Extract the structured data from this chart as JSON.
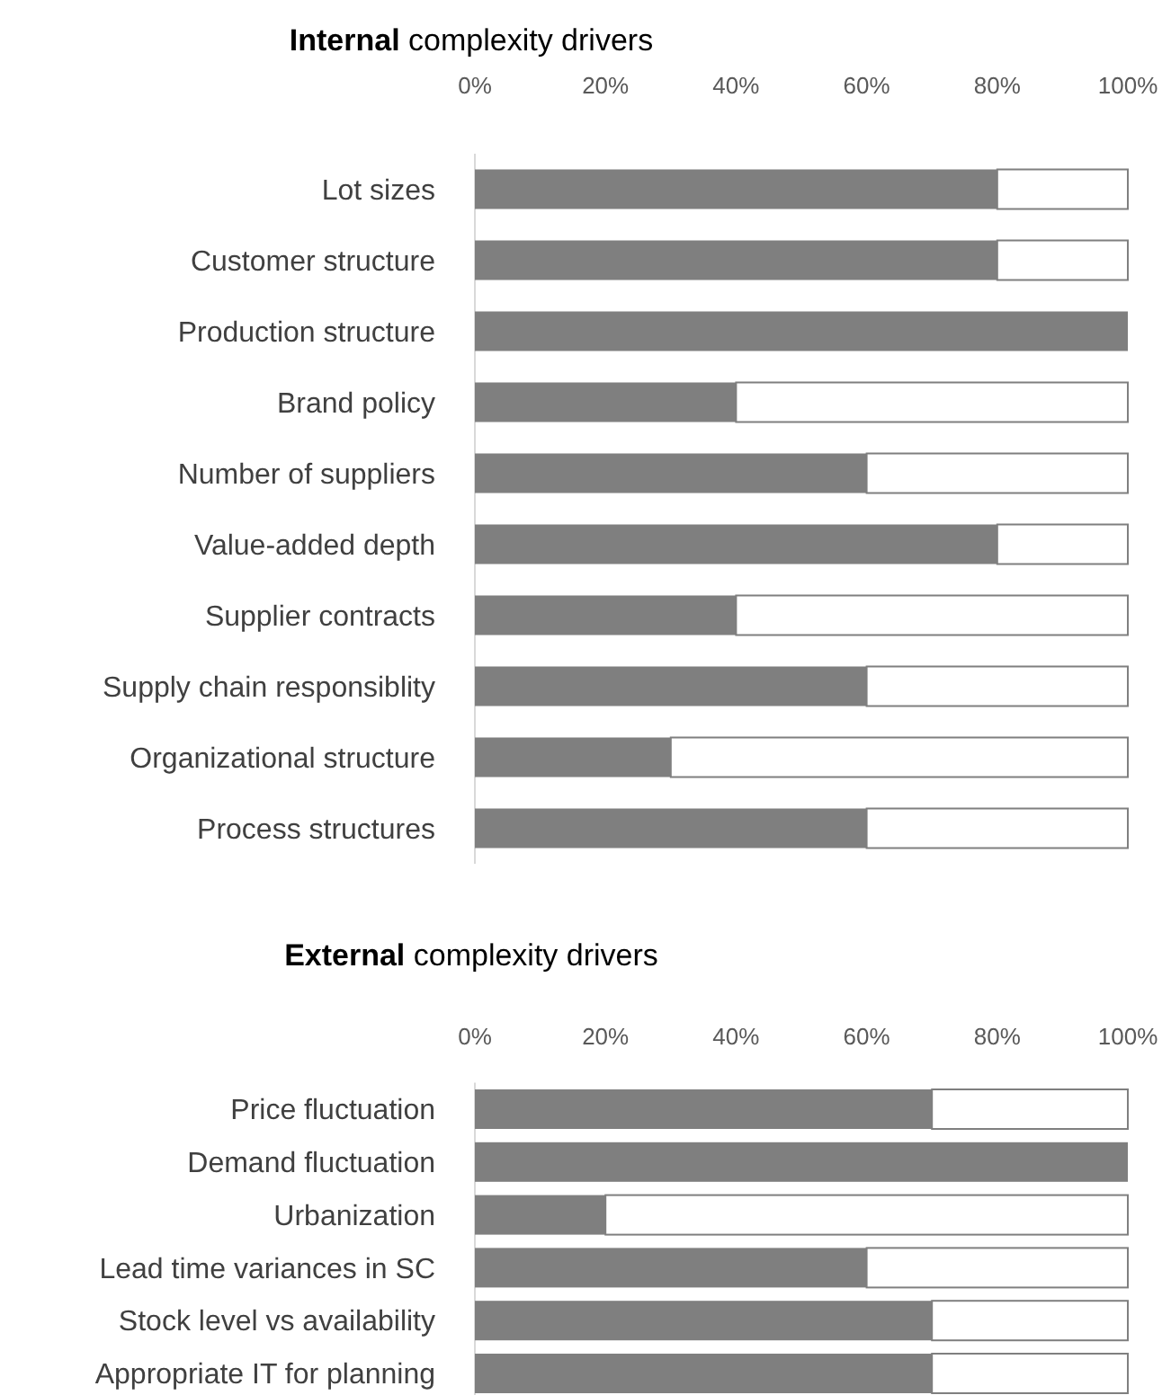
{
  "chart_data": [
    {
      "type": "bar",
      "orientation": "horizontal",
      "stacked": true,
      "title": "Internal complexity drivers",
      "categories": [
        "Lot sizes",
        "Customer structure",
        "Production structure",
        "Brand policy",
        "Number of suppliers",
        "Value-added depth",
        "Supplier contracts",
        "Supply chain responsiblity",
        "Organizational structure",
        "Process structures"
      ],
      "series": [
        {
          "color": "#7f7f7f",
          "values": [
            80,
            80,
            100,
            40,
            60,
            80,
            40,
            60,
            30,
            60
          ]
        },
        {
          "color": "#ffffff",
          "values": [
            20,
            20,
            0,
            60,
            40,
            20,
            60,
            40,
            70,
            40
          ]
        }
      ],
      "xlim": [
        0,
        100
      ],
      "xticks": [
        {
          "value": 0,
          "label": "0%"
        },
        {
          "value": 20,
          "label": "20%"
        },
        {
          "value": 40,
          "label": "40%"
        },
        {
          "value": 60,
          "label": "60%"
        },
        {
          "value": 80,
          "label": "80%"
        },
        {
          "value": 100,
          "label": "100%"
        }
      ],
      "grid": false
    },
    {
      "type": "bar",
      "orientation": "horizontal",
      "stacked": true,
      "title": "External complexity drivers",
      "categories": [
        "Price fluctuation",
        "Demand fluctuation",
        "Urbanization",
        "Lead time variances in SC",
        "Stock level vs availability",
        "Appropriate IT for planning"
      ],
      "series": [
        {
          "color": "#7f7f7f",
          "values": [
            70,
            100,
            20,
            60,
            70,
            70
          ]
        },
        {
          "color": "#ffffff",
          "values": [
            30,
            0,
            80,
            40,
            30,
            30
          ]
        }
      ],
      "xlim": [
        0,
        100
      ],
      "xticks": [
        {
          "value": 0,
          "label": "0%"
        },
        {
          "value": 20,
          "label": "20%"
        },
        {
          "value": 40,
          "label": "40%"
        },
        {
          "value": 60,
          "label": "60%"
        },
        {
          "value": 80,
          "label": "80%"
        },
        {
          "value": 100,
          "label": "100%"
        }
      ],
      "grid": false
    }
  ]
}
